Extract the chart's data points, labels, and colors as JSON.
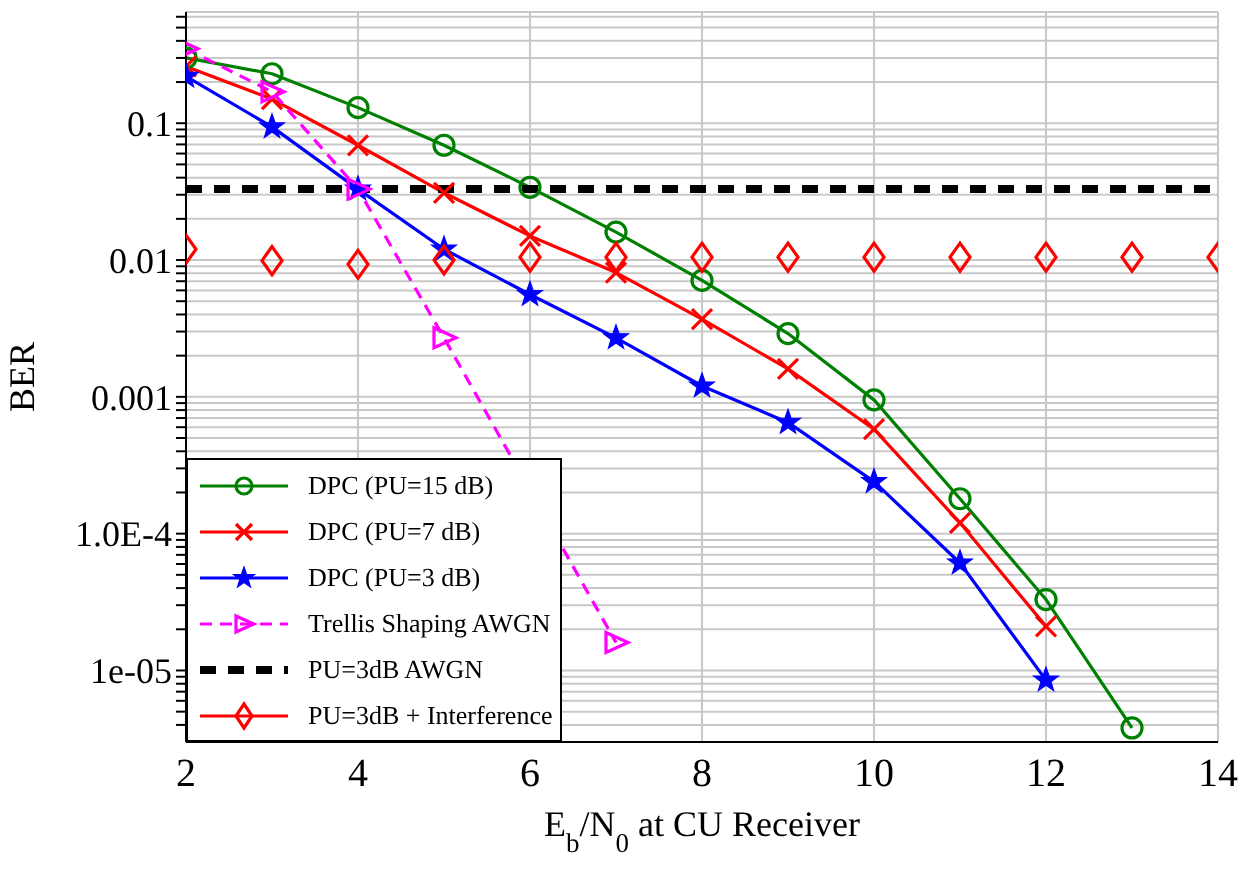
{
  "chart_data": {
    "type": "line",
    "xlabel": "E$_{b}$/N$_{0}$ at CU Receiver",
    "ylabel": "BER",
    "log": "y",
    "grid": true,
    "legend": "bottom left",
    "xlim": [
      2,
      14
    ],
    "xticks": [
      2,
      4,
      6,
      8,
      10,
      12,
      14
    ],
    "ylim": [
      3e-06,
      0.65
    ],
    "yticks": [
      {
        "value": 4e-06,
        "label": null
      },
      {
        "value": 5e-06,
        "label": null
      },
      {
        "value": 6e-06,
        "label": null
      },
      {
        "value": 7e-06,
        "label": null
      },
      {
        "value": 8e-06,
        "label": null
      },
      {
        "value": 9e-06,
        "label": null
      },
      {
        "value": 1e-05,
        "label": "1e-05"
      },
      {
        "value": 2e-05,
        "label": null
      },
      {
        "value": 3e-05,
        "label": null
      },
      {
        "value": 4e-05,
        "label": null
      },
      {
        "value": 5e-05,
        "label": null
      },
      {
        "value": 6e-05,
        "label": null
      },
      {
        "value": 7e-05,
        "label": null
      },
      {
        "value": 8e-05,
        "label": null
      },
      {
        "value": 9e-05,
        "label": null
      },
      {
        "value": 0.0001,
        "label": "1.0E-4"
      },
      {
        "value": 0.0002,
        "label": null
      },
      {
        "value": 0.0003,
        "label": null
      },
      {
        "value": 0.0004,
        "label": null
      },
      {
        "value": 0.0005,
        "label": null
      },
      {
        "value": 0.0006,
        "label": null
      },
      {
        "value": 0.0007,
        "label": null
      },
      {
        "value": 0.0008,
        "label": null
      },
      {
        "value": 0.0009,
        "label": null
      },
      {
        "value": 0.001,
        "label": "0.001"
      },
      {
        "value": 0.002,
        "label": null
      },
      {
        "value": 0.003,
        "label": null
      },
      {
        "value": 0.004,
        "label": null
      },
      {
        "value": 0.005,
        "label": null
      },
      {
        "value": 0.006,
        "label": null
      },
      {
        "value": 0.007,
        "label": null
      },
      {
        "value": 0.008,
        "label": null
      },
      {
        "value": 0.009,
        "label": null
      },
      {
        "value": 0.01,
        "label": "0.01"
      },
      {
        "value": 0.02,
        "label": null
      },
      {
        "value": 0.03,
        "label": null
      },
      {
        "value": 0.04,
        "label": null
      },
      {
        "value": 0.05,
        "label": null
      },
      {
        "value": 0.06,
        "label": null
      },
      {
        "value": 0.07,
        "label": null
      },
      {
        "value": 0.08,
        "label": null
      },
      {
        "value": 0.09,
        "label": null
      },
      {
        "value": 0.1,
        "label": "0.1"
      },
      {
        "value": 0.2,
        "label": null
      },
      {
        "value": 0.3,
        "label": null
      },
      {
        "value": 0.4,
        "label": null
      },
      {
        "value": 0.5,
        "label": null
      },
      {
        "value": 0.6,
        "label": null
      }
    ],
    "series": [
      {
        "name": "DPC (PU=15 dB)",
        "color": "#008000",
        "marker": "circle",
        "line_style": "solid",
        "x": [
          2,
          3,
          4,
          5,
          6,
          7,
          8,
          9,
          10,
          11,
          12,
          13
        ],
        "values": [
          0.3,
          0.23,
          0.13,
          0.069,
          0.034,
          0.016,
          0.0071,
          0.0029,
          0.00095,
          0.00018,
          3.3e-05,
          3.8e-06
        ]
      },
      {
        "name": "DPC (PU=7 dB)",
        "color": "#ff0000",
        "marker": "cross",
        "line_style": "solid",
        "x": [
          2,
          3,
          4,
          5,
          6,
          7,
          8,
          9,
          10,
          11,
          12
        ],
        "values": [
          0.26,
          0.15,
          0.069,
          0.031,
          0.015,
          0.0081,
          0.0037,
          0.0016,
          0.00058,
          0.00012,
          2.1e-05
        ]
      },
      {
        "name": "DPC (PU=3 dB)",
        "color": "#0000ff",
        "marker": "star",
        "line_style": "solid",
        "x": [
          2,
          3,
          4,
          5,
          6,
          7,
          8,
          9,
          10,
          11,
          12
        ],
        "values": [
          0.22,
          0.094,
          0.033,
          0.012,
          0.0056,
          0.0027,
          0.0012,
          0.00065,
          0.00024,
          6.1e-05,
          8.5e-06
        ]
      },
      {
        "name": "Trellis Shaping AWGN",
        "color": "#ff00ff",
        "marker": "triangle",
        "line_style": "dashed",
        "x": [
          2,
          3,
          4,
          5,
          6,
          7
        ],
        "values": [
          0.35,
          0.17,
          0.033,
          0.0027,
          null,
          1.6e-05
        ]
      },
      {
        "name": "PU=3dB AWGN",
        "color": "#000000",
        "marker": "none",
        "line_style": "dashed",
        "x": [
          2,
          14
        ],
        "values": [
          0.033,
          0.033
        ]
      },
      {
        "name": "PU=3dB + Interference",
        "color": "#ff0000",
        "type": "scatter",
        "marker": "diamond",
        "x": [
          2,
          3,
          4,
          5,
          6,
          7,
          8,
          9,
          10,
          11,
          12,
          13,
          14
        ],
        "values": [
          0.012,
          0.0099,
          0.0093,
          0.01,
          0.0105,
          0.0105,
          0.0105,
          0.0105,
          0.0105,
          0.0105,
          0.0105,
          0.0105,
          0.0105
        ]
      }
    ]
  }
}
